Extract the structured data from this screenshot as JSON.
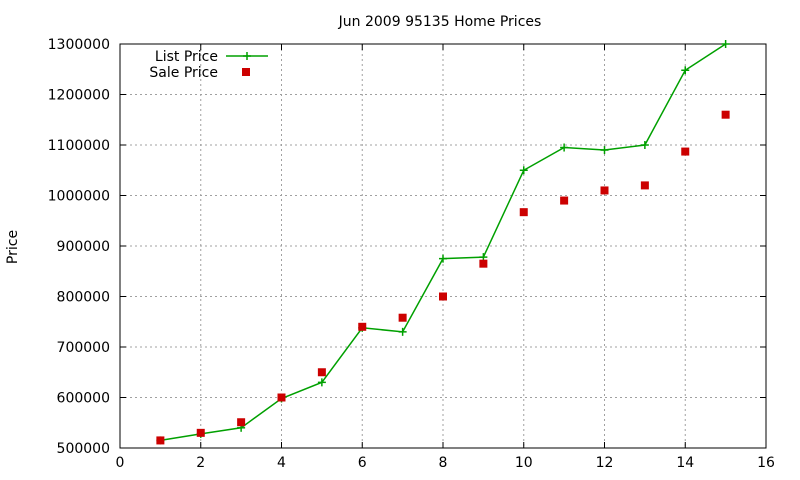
{
  "chart_data": {
    "type": "line",
    "title": "Jun 2009 95135 Home Prices",
    "xlabel": "",
    "ylabel": "Price",
    "xlim": [
      0,
      16
    ],
    "ylim": [
      500000,
      1300000
    ],
    "x_ticks": [
      "0",
      "2",
      "4",
      "6",
      "8",
      "10",
      "12",
      "14",
      "16"
    ],
    "y_ticks": [
      "500000",
      "600000",
      "700000",
      "800000",
      "900000",
      "1000000",
      "1100000",
      "1200000",
      "1300000"
    ],
    "grid": true,
    "legend_position": "top-left",
    "series": [
      {
        "name": "List Price",
        "style": "line-with-plus-markers",
        "color": "#00a000",
        "x": [
          1,
          2,
          3,
          4,
          5,
          6,
          7,
          8,
          9,
          10,
          11,
          12,
          13,
          14,
          15
        ],
        "y": [
          515000,
          528000,
          540000,
          598000,
          630000,
          738000,
          730000,
          875000,
          878000,
          1050000,
          1095000,
          1090000,
          1100000,
          1248000,
          1300000
        ]
      },
      {
        "name": "Sale Price",
        "style": "square-markers",
        "color": "#cc0000",
        "x": [
          1,
          2,
          3,
          4,
          5,
          6,
          7,
          8,
          9,
          10,
          11,
          12,
          13,
          14,
          15
        ],
        "y": [
          515000,
          530000,
          551000,
          600000,
          650000,
          740000,
          758000,
          800000,
          865000,
          967000,
          990000,
          1010000,
          1020000,
          1087000,
          1160000
        ]
      }
    ]
  }
}
